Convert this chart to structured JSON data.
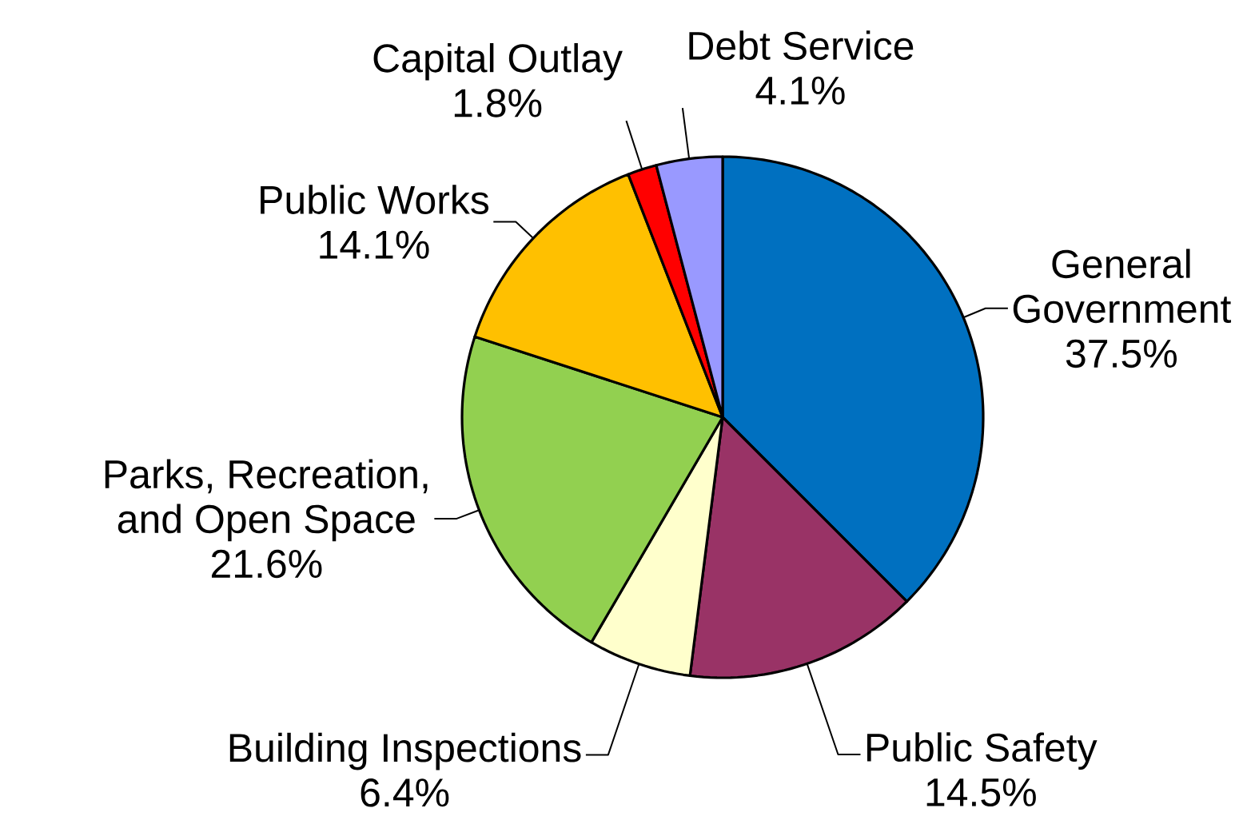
{
  "chart_data": {
    "type": "pie",
    "categories": [
      "General Government",
      "Public Safety",
      "Building Inspections",
      "Parks, Recreation, and Open Space",
      "Public Works",
      "Capital Outlay",
      "Debt Service"
    ],
    "values": [
      37.5,
      14.5,
      6.4,
      21.6,
      14.1,
      1.8,
      4.1
    ],
    "value_labels": [
      "37.5%",
      "14.5%",
      "6.4%",
      "21.6%",
      "14.1%",
      "1.8%",
      "4.1%"
    ],
    "colors": [
      "#0070c0",
      "#993366",
      "#ffffcc",
      "#92d050",
      "#ffc000",
      "#ff0000",
      "#9999ff"
    ]
  }
}
